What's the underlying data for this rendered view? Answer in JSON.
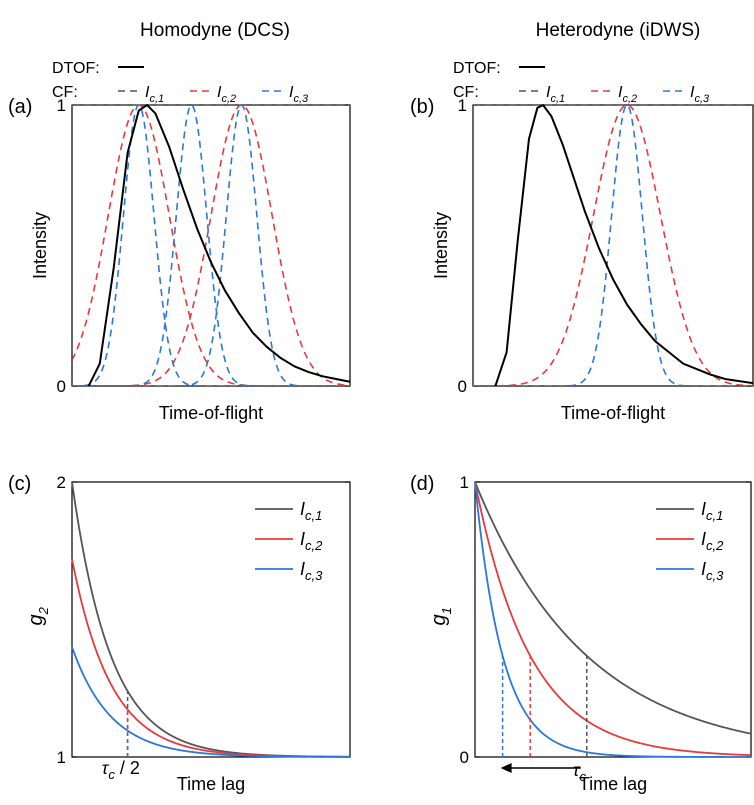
{
  "colors": {
    "dtof": "#000000",
    "cf1": "#555555",
    "cf2": "#e8393c",
    "cf3": "#2a78d8",
    "ref": "#555555"
  },
  "chart_data": [
    {
      "id": "a",
      "panel_label": "(a)",
      "column_title": "Homodyne (DCS)",
      "type": "line",
      "xlabel": "Time-of-flight",
      "ylabel": "Intensity",
      "ylim": [
        0,
        1
      ],
      "yticks": [
        {
          "v": 0,
          "label": "0"
        },
        {
          "v": 1,
          "label": "1"
        }
      ],
      "legend": {
        "dtof_label": "DTOF:",
        "cf_label": "CF:",
        "items": [
          {
            "base": "I",
            "sub": "c,1"
          },
          {
            "base": "I",
            "sub": "c,2"
          },
          {
            "base": "I",
            "sub": "c,3"
          }
        ]
      },
      "series": [
        {
          "key": "dtof",
          "legend": "DTOF",
          "style": "solid",
          "x": [
            0.06,
            0.1,
            0.15,
            0.2,
            0.24,
            0.27,
            0.3,
            0.35,
            0.4,
            0.45,
            0.5,
            0.55,
            0.6,
            0.65,
            0.7,
            0.75,
            0.8,
            0.85,
            0.9,
            0.95,
            1.0
          ],
          "values": [
            0.0,
            0.08,
            0.42,
            0.83,
            0.98,
            1.0,
            0.97,
            0.85,
            0.7,
            0.56,
            0.44,
            0.34,
            0.26,
            0.19,
            0.14,
            0.1,
            0.07,
            0.05,
            0.035,
            0.025,
            0.015
          ]
        },
        {
          "key": "cf1",
          "legend": "I c,1",
          "style": "dashed",
          "x": [
            0.0,
            0.5,
            1.0
          ],
          "values": [
            1.0,
            1.0,
            1.0
          ]
        },
        {
          "key": "cf2",
          "legend": "I c,2",
          "style": "dashed",
          "gaussians": [
            {
              "mu": 0.24,
              "sigma": 0.11
            },
            {
              "mu": 0.61,
              "sigma": 0.11
            }
          ]
        },
        {
          "key": "cf3",
          "legend": "I c,3",
          "style": "dashed",
          "gaussians": [
            {
              "mu": 0.24,
              "sigma": 0.055
            },
            {
              "mu": 0.43,
              "sigma": 0.055
            },
            {
              "mu": 0.61,
              "sigma": 0.055
            }
          ]
        }
      ]
    },
    {
      "id": "b",
      "panel_label": "(b)",
      "column_title": "Heterodyne (iDWS)",
      "type": "line",
      "xlabel": "Time-of-flight",
      "ylabel": "Intensity",
      "ylim": [
        0,
        1
      ],
      "yticks": [
        {
          "v": 0,
          "label": "0"
        },
        {
          "v": 1,
          "label": "1"
        }
      ],
      "legend": {
        "dtof_label": "DTOF:",
        "cf_label": "CF:",
        "items": [
          {
            "base": "I",
            "sub": "c,1"
          },
          {
            "base": "I",
            "sub": "c,2"
          },
          {
            "base": "I",
            "sub": "c,3"
          }
        ]
      },
      "series": [
        {
          "key": "dtof",
          "legend": "DTOF",
          "style": "solid",
          "x": [
            0.08,
            0.12,
            0.16,
            0.2,
            0.23,
            0.25,
            0.28,
            0.32,
            0.36,
            0.4,
            0.45,
            0.5,
            0.55,
            0.6,
            0.65,
            0.7,
            0.75,
            0.8,
            0.85,
            0.9,
            1.0
          ],
          "values": [
            0.0,
            0.12,
            0.52,
            0.88,
            0.99,
            1.0,
            0.96,
            0.86,
            0.74,
            0.62,
            0.49,
            0.38,
            0.29,
            0.22,
            0.16,
            0.12,
            0.08,
            0.06,
            0.04,
            0.025,
            0.01
          ]
        },
        {
          "key": "cf1",
          "legend": "I c,1",
          "style": "dashed",
          "x": [
            0.0,
            0.5,
            1.0
          ],
          "values": [
            1.0,
            1.0,
            1.0
          ]
        },
        {
          "key": "cf2",
          "legend": "I c,2",
          "style": "dashed",
          "gaussians": [
            {
              "mu": 0.55,
              "sigma": 0.12
            }
          ]
        },
        {
          "key": "cf3",
          "legend": "I c,3",
          "style": "dashed",
          "gaussians": [
            {
              "mu": 0.55,
              "sigma": 0.055
            }
          ]
        }
      ]
    },
    {
      "id": "c",
      "panel_label": "(c)",
      "type": "line",
      "xlabel": "Time lag",
      "ylabel_base": "g",
      "ylabel_sub": "2",
      "ylim": [
        1,
        2
      ],
      "yticks": [
        {
          "v": 1,
          "label": "1"
        },
        {
          "v": 2,
          "label": "2"
        }
      ],
      "legend": {
        "items": [
          {
            "base": "I",
            "sub": "c,1"
          },
          {
            "base": "I",
            "sub": "c,2"
          },
          {
            "base": "I",
            "sub": "c,3"
          }
        ]
      },
      "annotation": {
        "tau": "τ",
        "tau_sub": "c",
        "suffix": " / 2",
        "x": 0.2
      },
      "series": [
        {
          "key": "cf1",
          "legend": "I c,1",
          "start": 2.0,
          "decay": 0.14
        },
        {
          "key": "cf2",
          "legend": "I c,2",
          "start": 1.72,
          "decay": 0.14
        },
        {
          "key": "cf3",
          "legend": "I c,3",
          "start": 1.4,
          "decay": 0.14
        }
      ]
    },
    {
      "id": "d",
      "panel_label": "(d)",
      "type": "line",
      "xlabel": "Time lag",
      "ylabel_base": "g",
      "ylabel_sub": "1",
      "ylim": [
        0,
        1
      ],
      "yticks": [
        {
          "v": 0,
          "label": "0"
        },
        {
          "v": 1,
          "label": "1"
        }
      ],
      "legend": {
        "items": [
          {
            "base": "I",
            "sub": "c,1"
          },
          {
            "base": "I",
            "sub": "c,2"
          },
          {
            "base": "I",
            "sub": "c,3"
          }
        ]
      },
      "annotation": {
        "tau": "τ",
        "tau_sub": "c"
      },
      "markers_x": {
        "cf1": 0.405,
        "cf2": 0.2,
        "cf3": 0.1
      },
      "series": [
        {
          "key": "cf1",
          "legend": "I c,1",
          "start": 1.0,
          "decay": 0.405
        },
        {
          "key": "cf2",
          "legend": "I c,2",
          "start": 1.0,
          "decay": 0.2
        },
        {
          "key": "cf3",
          "legend": "I c,3",
          "start": 1.0,
          "decay": 0.1
        }
      ]
    }
  ]
}
